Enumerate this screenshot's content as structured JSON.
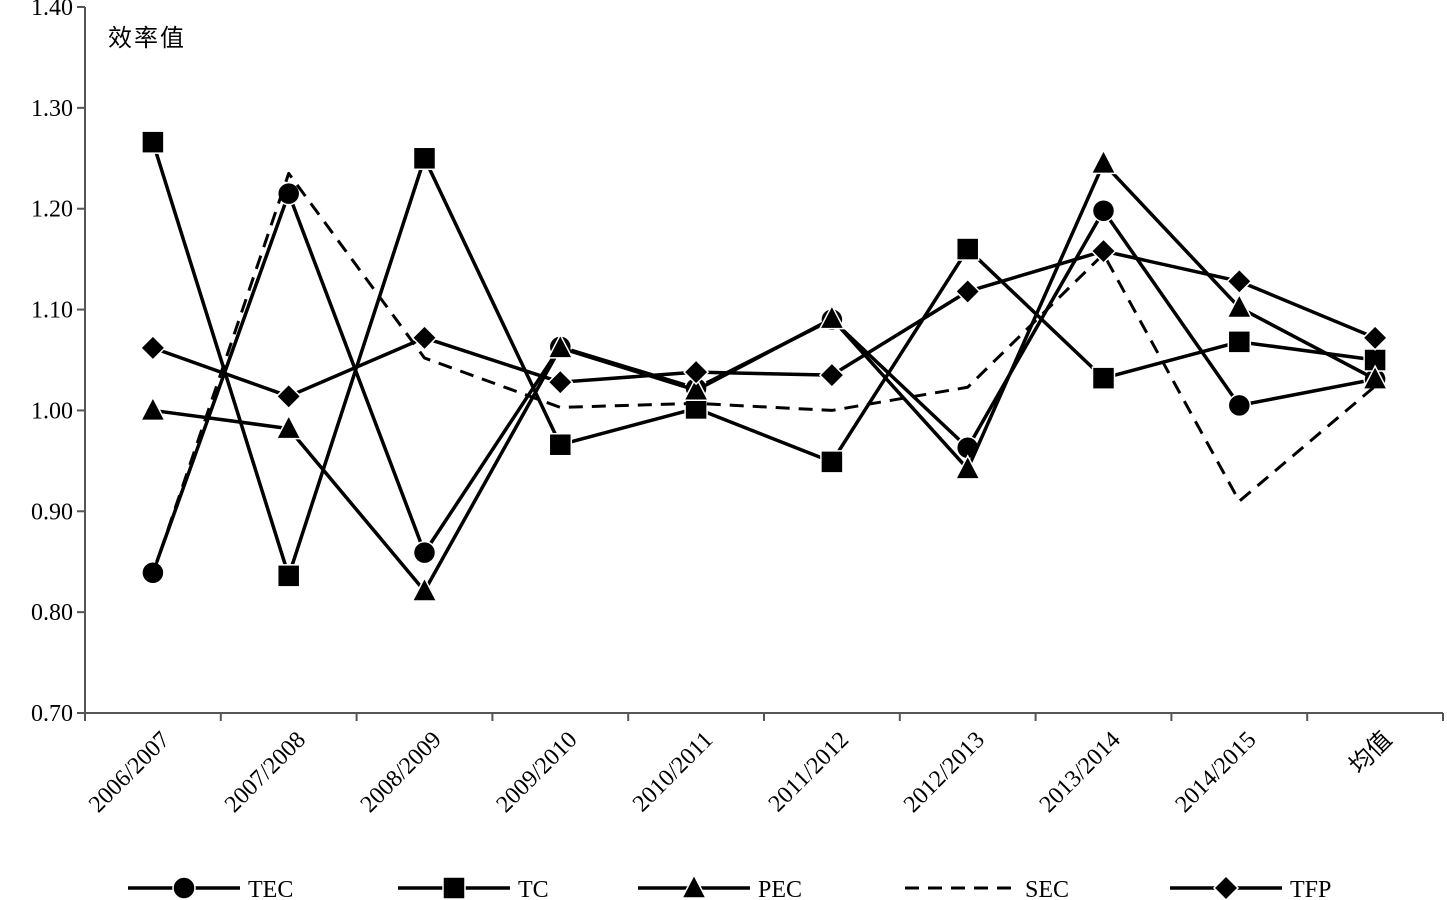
{
  "chart_data": {
    "type": "line",
    "ylabel": "效率值",
    "xlabel": "",
    "ylim": [
      0.7,
      1.4
    ],
    "yticks": [
      "0.70",
      "0.80",
      "0.90",
      "1.00",
      "1.10",
      "1.20",
      "1.30",
      "1.40"
    ],
    "categories": [
      "2006/2007",
      "2007/2008",
      "2008/2009",
      "2009/2010",
      "2010/2011",
      "2011/2012",
      "2012/2013",
      "2013/2014",
      "2014/2015",
      "均值"
    ],
    "grid": false,
    "legend_position": "bottom",
    "series": [
      {
        "name": "TEC",
        "marker": "circle",
        "dash": "solid",
        "values": [
          0.839,
          1.215,
          0.859,
          1.063,
          1.022,
          1.09,
          0.963,
          1.198,
          1.005,
          1.031
        ]
      },
      {
        "name": "TC",
        "marker": "square",
        "dash": "solid",
        "values": [
          1.266,
          0.836,
          1.25,
          0.966,
          1.002,
          0.949,
          1.16,
          1.032,
          1.068,
          1.05
        ]
      },
      {
        "name": "PEC",
        "marker": "triangle",
        "dash": "solid",
        "values": [
          1.0,
          0.982,
          0.821,
          1.062,
          1.02,
          1.091,
          0.942,
          1.245,
          1.102,
          1.031
        ]
      },
      {
        "name": "SEC",
        "marker": "none",
        "dash": "dashed",
        "values": [
          0.838,
          1.235,
          1.052,
          1.003,
          1.007,
          1.0,
          1.023,
          1.155,
          0.91,
          1.024
        ]
      },
      {
        "name": "TFP",
        "marker": "diamond",
        "dash": "solid",
        "values": [
          1.062,
          1.014,
          1.072,
          1.028,
          1.038,
          1.035,
          1.118,
          1.158,
          1.128,
          1.072
        ]
      }
    ]
  }
}
